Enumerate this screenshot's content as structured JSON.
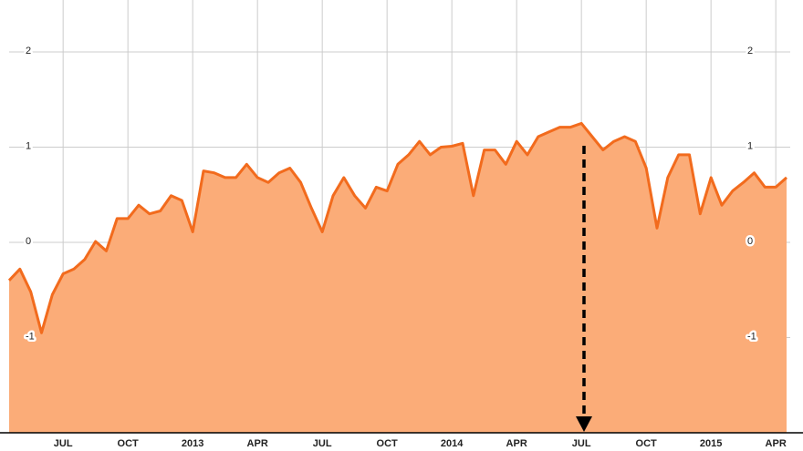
{
  "chart_data": {
    "type": "area",
    "categories": [
      null,
      null,
      null,
      null,
      null,
      "JUL",
      null,
      null,
      null,
      null,
      null,
      "OCT",
      null,
      null,
      null,
      null,
      null,
      "2013",
      null,
      null,
      null,
      null,
      null,
      "APR",
      null,
      null,
      null,
      null,
      null,
      "JUL",
      null,
      null,
      null,
      null,
      null,
      "OCT",
      null,
      null,
      null,
      null,
      null,
      "2014",
      null,
      null,
      null,
      null,
      null,
      "APR",
      null,
      null,
      null,
      null,
      null,
      "JUL",
      null,
      null,
      null,
      null,
      null,
      "OCT",
      null,
      null,
      null,
      null,
      null,
      "2015",
      null,
      null,
      null,
      null,
      null,
      "APR",
      null
    ],
    "values": [
      -0.4,
      -0.28,
      -0.52,
      -0.95,
      -0.55,
      -0.33,
      -0.28,
      -0.18,
      0.01,
      -0.09,
      0.25,
      0.25,
      0.39,
      0.3,
      0.33,
      0.49,
      0.44,
      0.11,
      0.75,
      0.73,
      0.68,
      0.68,
      0.82,
      0.68,
      0.63,
      0.73,
      0.78,
      0.63,
      0.36,
      0.11,
      0.49,
      0.68,
      0.49,
      0.36,
      0.58,
      0.54,
      0.82,
      0.92,
      1.06,
      0.92,
      1.0,
      1.01,
      1.04,
      0.49,
      0.97,
      0.97,
      0.82,
      1.06,
      0.92,
      1.11,
      1.16,
      1.21,
      1.21,
      1.25,
      1.11,
      0.97,
      1.06,
      1.11,
      1.06,
      0.78,
      0.15,
      0.68,
      0.92,
      0.92,
      0.3,
      0.68,
      0.39,
      0.54,
      0.63,
      0.73,
      0.58,
      0.58,
      0.68
    ],
    "color": "#f26b1d",
    "fill": "#fbac78",
    "ylim": [
      -2,
      2.5
    ],
    "yticks": [
      -1,
      0,
      1,
      2
    ],
    "grid": true
  }
}
